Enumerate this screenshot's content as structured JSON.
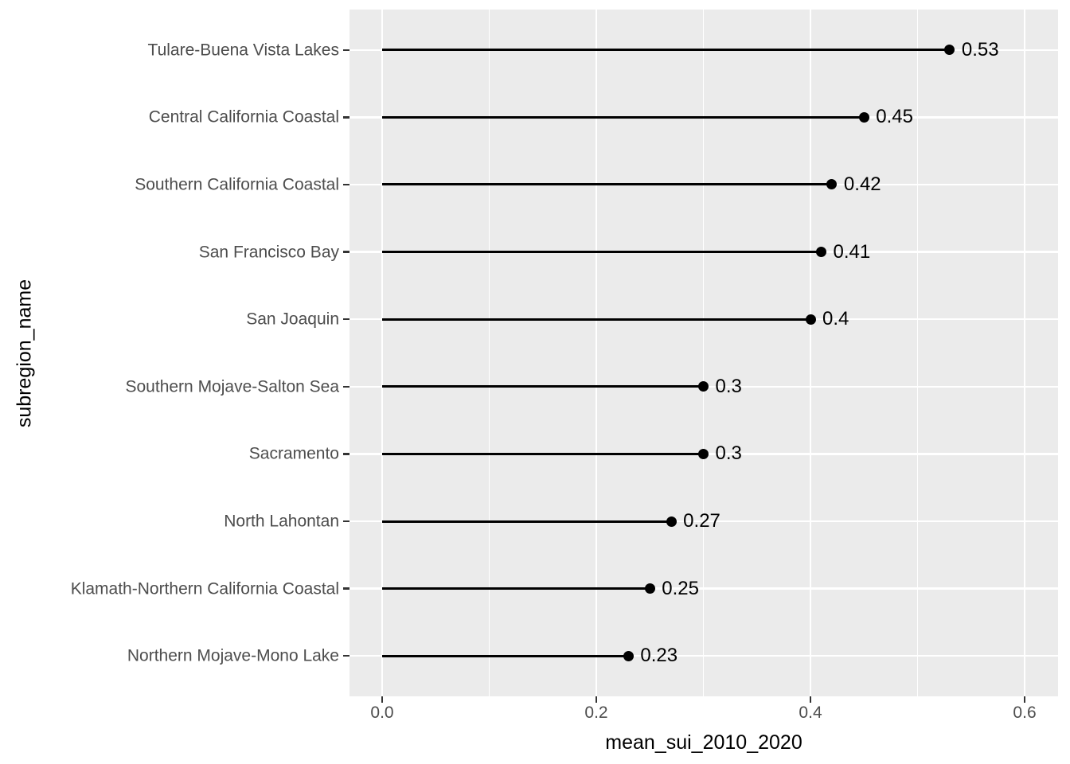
{
  "figure": {
    "background": "#FFFFFF",
    "panel_background": "#EBEBEB",
    "grid_color": "#FFFFFF",
    "axis_text_color": "#4D4D4D",
    "axis_title_color": "#000000",
    "tick_mark_color": "#333333",
    "point_color": "#000000",
    "segment_color": "#000000",
    "value_label_color": "#000000"
  },
  "chart_data": {
    "type": "lollipop-horizontal",
    "title": "",
    "xlabel": "mean_sui_2010_2020",
    "ylabel": "subregion_name",
    "categories": [
      "Tulare-Buena Vista Lakes",
      "Central California Coastal",
      "Southern California Coastal",
      "San Francisco Bay",
      "San Joaquin",
      "Southern Mojave-Salton Sea",
      "Sacramento",
      "North Lahontan",
      "Klamath-Northern California Coastal",
      "Northern Mojave-Mono Lake"
    ],
    "values": [
      0.53,
      0.45,
      0.42,
      0.41,
      0.4,
      0.3,
      0.3,
      0.27,
      0.25,
      0.23
    ],
    "value_labels": [
      "0.53",
      "0.45",
      "0.42",
      "0.41",
      "0.4",
      "0.3",
      "0.3",
      "0.27",
      "0.25",
      "0.23"
    ],
    "x_ticks": {
      "values": [
        0.0,
        0.2,
        0.4,
        0.6
      ],
      "labels": [
        "0.0",
        "0.2",
        "0.4",
        "0.6"
      ]
    },
    "x_minor_ticks": [
      0.1,
      0.3,
      0.5
    ],
    "xlim": [
      -0.0305,
      0.6312
    ],
    "grid": "x: major+minor, y: major per category",
    "legend": "none"
  }
}
